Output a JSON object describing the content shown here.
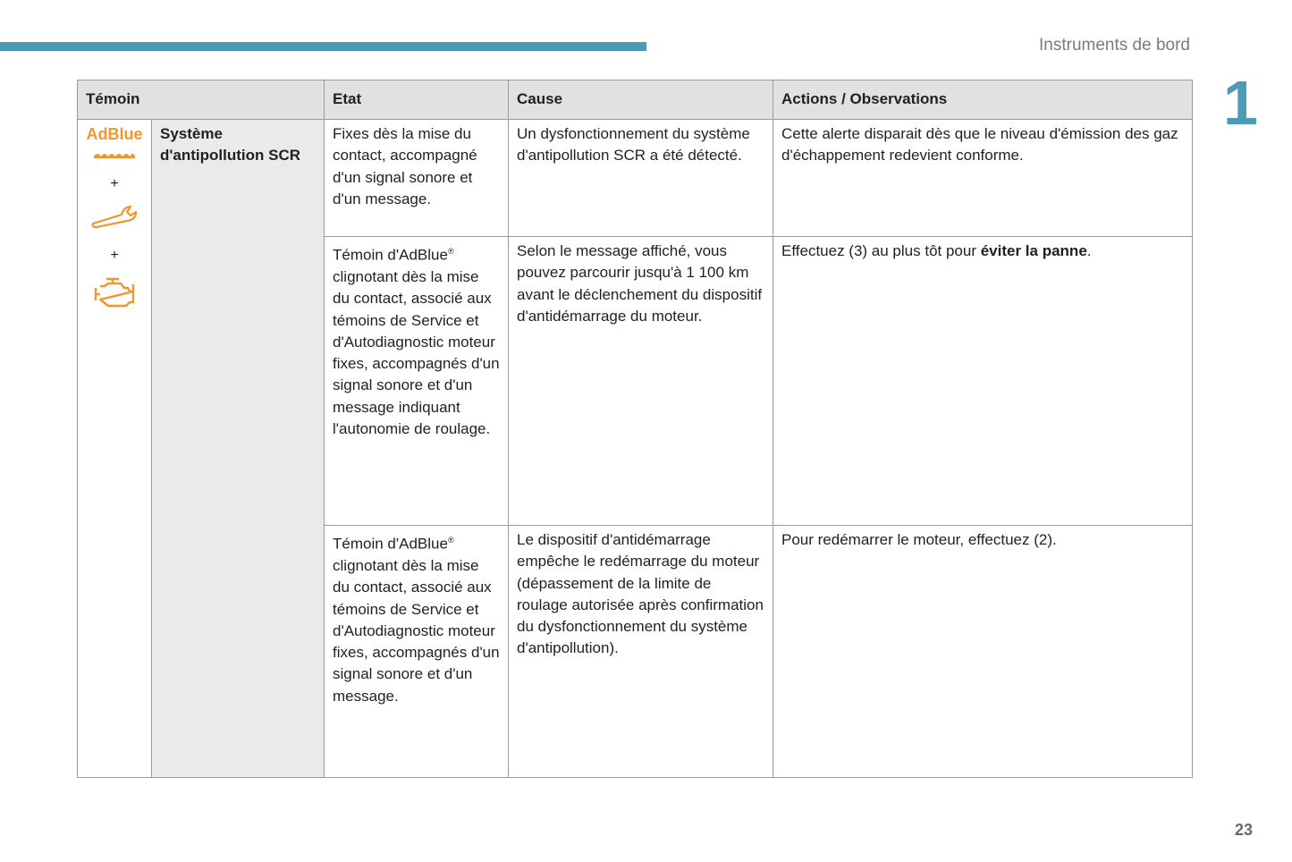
{
  "header": {
    "section_title": "Instruments de bord",
    "chapter_number": "1",
    "accent_color": "#4a9bb5"
  },
  "page_number": "23",
  "table": {
    "headers": {
      "temoin": "Témoin",
      "etat": "Etat",
      "cause": "Cause",
      "actions": "Actions / Observations"
    },
    "icons": {
      "adblue_label": "AdBlue",
      "plus": "+",
      "icon_color": "#f0962d",
      "icon_names": [
        "adblue-icon",
        "wrench-service-icon",
        "engine-diagnostic-icon"
      ]
    },
    "system": "Système d'antipollution SCR",
    "rows": [
      {
        "etat": "Fixes dès la mise du contact, accompagné d'un signal sonore et d'un message.",
        "cause": "Un dysfonctionnement du système d'antipollution SCR a été détecté.",
        "actions": "Cette alerte disparait dès que le niveau d'émission des gaz d'échappement redevient conforme."
      },
      {
        "etat_prefix": "Témoin d'AdBlue",
        "reg": "®",
        "etat": " clignotant dès la mise du contact, associé aux témoins de Service et d'Autodiagnostic moteur fixes, accompagnés d'un signal sonore et d'un message indiquant l'autonomie de roulage.",
        "cause": "Selon le message affiché, vous pouvez parcourir jusqu'à 1 100 km avant le déclenchement du dispositif d'antidémarrage du moteur.",
        "actions_prefix": "Effectuez (3) au plus tôt pour ",
        "actions_bold": "éviter la panne",
        "actions_suffix": "."
      },
      {
        "etat_prefix": "Témoin d'AdBlue",
        "reg": "®",
        "etat": " clignotant dès la mise du contact, associé aux témoins de Service et d'Autodiagnostic moteur fixes, accompagnés d'un signal sonore et d'un message.",
        "cause": "Le dispositif d'antidémarrage empêche le redémarrage du moteur (dépassement de la limite de roulage autorisée après confirmation du dysfonctionnement du système d'antipollution).",
        "actions": "Pour redémarrer le moteur, effectuez (2)."
      }
    ]
  }
}
